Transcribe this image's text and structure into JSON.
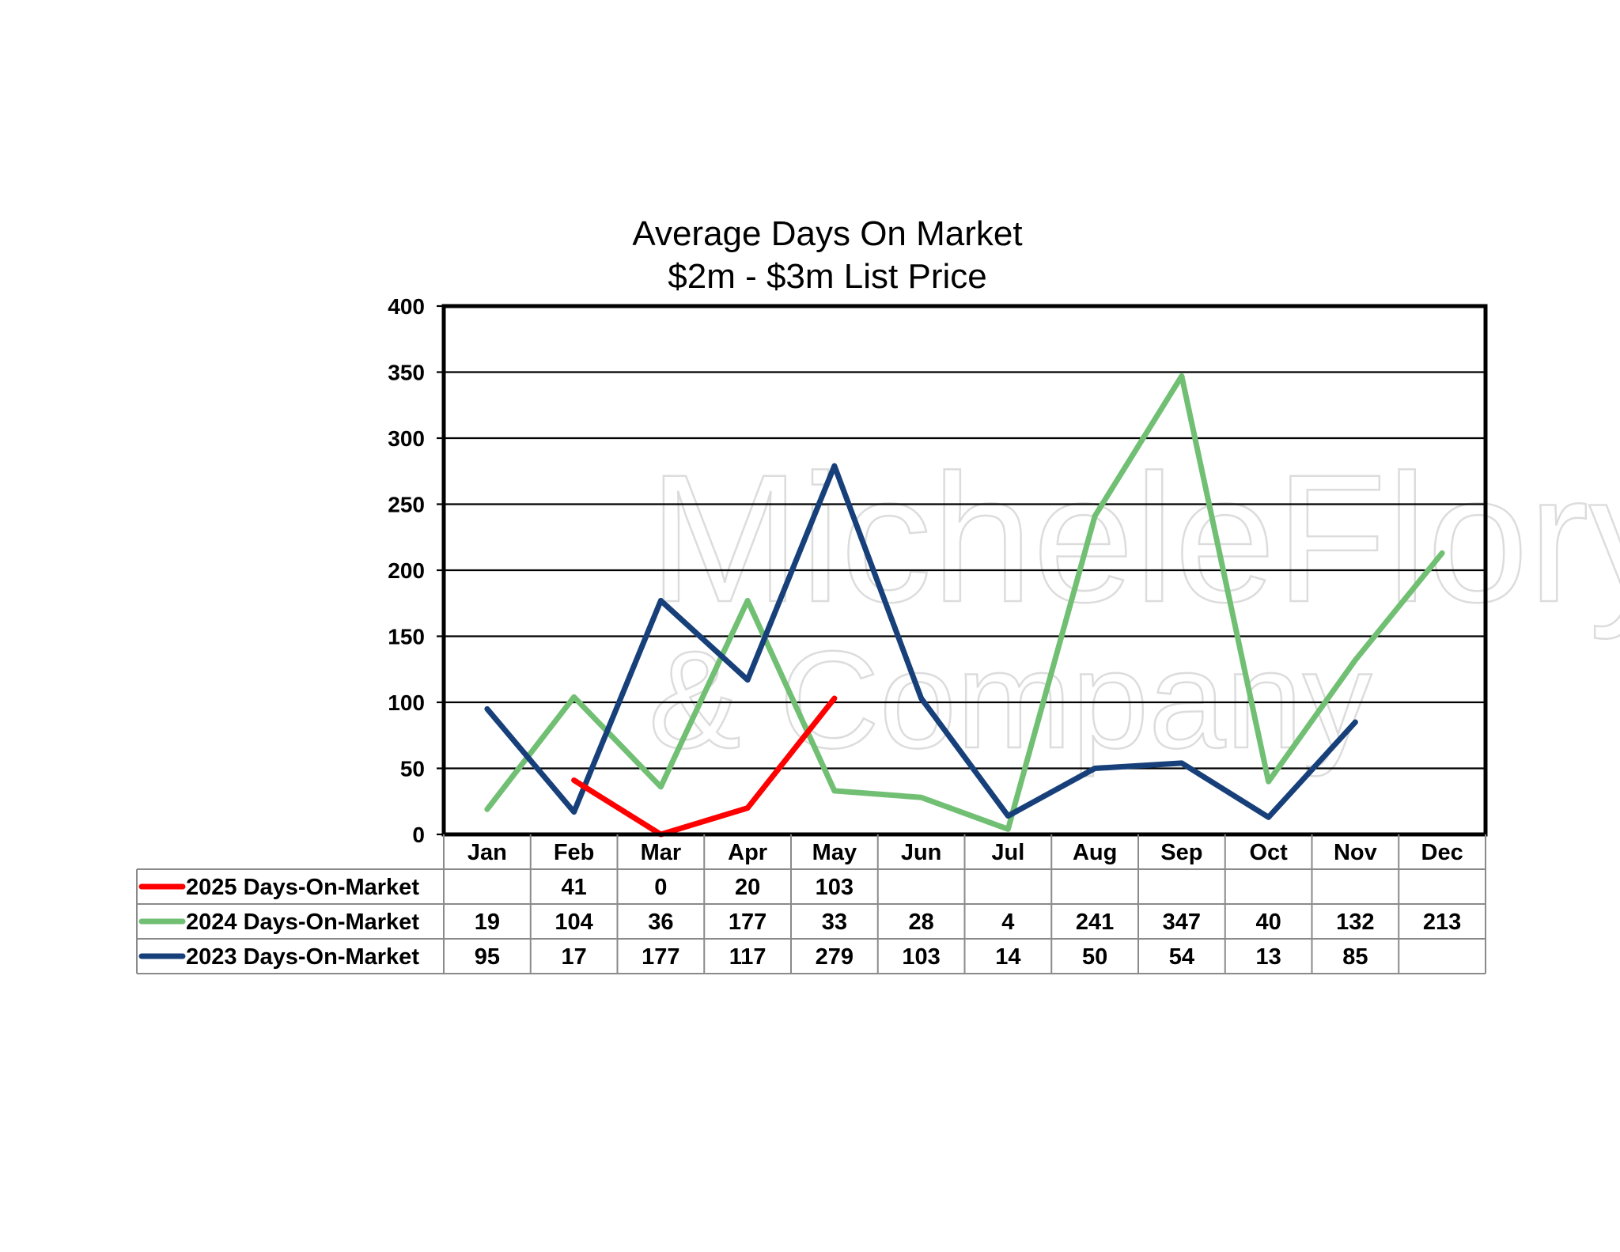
{
  "chart_data": {
    "type": "line",
    "title": "Average Days On Market",
    "subtitle": "$2m - $3m List Price",
    "xlabel": "",
    "ylabel": "",
    "categories": [
      "Jan",
      "Feb",
      "Mar",
      "Apr",
      "May",
      "Jun",
      "Jul",
      "Aug",
      "Sep",
      "Oct",
      "Nov",
      "Dec"
    ],
    "ylim": [
      0,
      400
    ],
    "yticks": [
      0,
      50,
      100,
      150,
      200,
      250,
      300,
      350,
      400
    ],
    "grid": true,
    "legend": "data-table-below",
    "series": [
      {
        "name": "2025 Days-On-Market",
        "color": "#ff0000",
        "values": [
          null,
          41,
          0,
          20,
          103,
          null,
          null,
          null,
          null,
          null,
          null,
          null
        ]
      },
      {
        "name": "2024 Days-On-Market",
        "color": "#70bf73",
        "values": [
          19,
          104,
          36,
          177,
          33,
          28,
          4,
          241,
          347,
          40,
          132,
          213
        ]
      },
      {
        "name": "2023 Days-On-Market",
        "color": "#17407a",
        "values": [
          95,
          17,
          177,
          117,
          279,
          103,
          14,
          50,
          54,
          13,
          85,
          null
        ]
      }
    ]
  },
  "watermark": {
    "line1": "MicheleFlory",
    "line2": "& Company"
  }
}
